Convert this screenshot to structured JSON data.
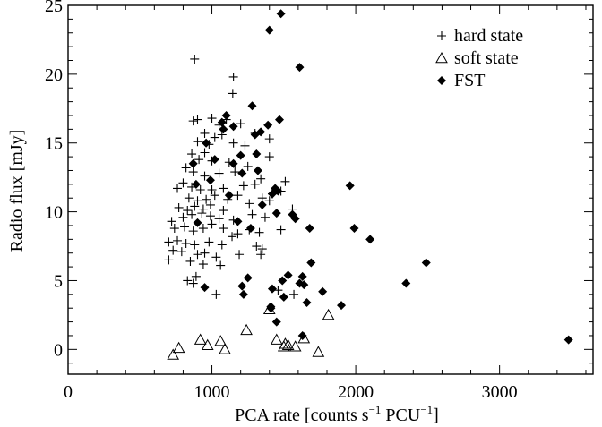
{
  "chart_data": {
    "type": "scatter",
    "title": "",
    "xlabel": "PCA rate [counts s",
    "xlabel_sup1": "−1",
    "xlabel_mid": " PCU",
    "xlabel_sup2": "−1",
    "xlabel_end": "]",
    "ylabel": "Radio flux [mJy]",
    "xlim": [
      0,
      3650
    ],
    "ylim": [
      -1.8,
      25
    ],
    "x_ticks": [
      0,
      1000,
      2000,
      3000
    ],
    "x_tick_labels": [
      "0",
      "1000",
      "2000",
      "3000"
    ],
    "y_ticks": [
      0,
      5,
      10,
      15,
      20,
      25
    ],
    "y_tick_labels": [
      "0",
      "5",
      "10",
      "15",
      "20",
      "25"
    ],
    "legend_position": "top-right",
    "series": [
      {
        "name": "hard state",
        "marker": "plus",
        "points": [
          [
            880,
            21.1
          ],
          [
            1150,
            19.8
          ],
          [
            1145,
            18.6
          ],
          [
            900,
            16.7
          ],
          [
            870,
            16.6
          ],
          [
            1000,
            16.8
          ],
          [
            1100,
            16.7
          ],
          [
            1050,
            16.3
          ],
          [
            1200,
            16.4
          ],
          [
            950,
            15.7
          ],
          [
            1020,
            15.4
          ],
          [
            1070,
            15.6
          ],
          [
            1300,
            15.7
          ],
          [
            1400,
            15.3
          ],
          [
            900,
            15.1
          ],
          [
            980,
            14.9
          ],
          [
            1150,
            15.0
          ],
          [
            1230,
            14.8
          ],
          [
            860,
            14.2
          ],
          [
            910,
            13.8
          ],
          [
            950,
            14.3
          ],
          [
            1000,
            13.7
          ],
          [
            1120,
            13.6
          ],
          [
            1250,
            13.3
          ],
          [
            1400,
            14.0
          ],
          [
            820,
            13.2
          ],
          [
            870,
            12.9
          ],
          [
            950,
            12.6
          ],
          [
            1050,
            12.8
          ],
          [
            1160,
            12.9
          ],
          [
            1340,
            12.4
          ],
          [
            1510,
            12.2
          ],
          [
            800,
            12.1
          ],
          [
            860,
            11.8
          ],
          [
            920,
            11.6
          ],
          [
            1000,
            11.6
          ],
          [
            1080,
            11.7
          ],
          [
            1220,
            11.9
          ],
          [
            1300,
            12.0
          ],
          [
            1420,
            11.3
          ],
          [
            760,
            11.7
          ],
          [
            840,
            11.0
          ],
          [
            900,
            10.8
          ],
          [
            960,
            10.9
          ],
          [
            1020,
            11.2
          ],
          [
            1110,
            10.9
          ],
          [
            1180,
            11.2
          ],
          [
            1350,
            11.0
          ],
          [
            1480,
            11.5
          ],
          [
            770,
            10.3
          ],
          [
            830,
            10.1
          ],
          [
            880,
            10.4
          ],
          [
            940,
            10.2
          ],
          [
            990,
            10.5
          ],
          [
            1080,
            10.1
          ],
          [
            1260,
            10.6
          ],
          [
            1400,
            10.8
          ],
          [
            1560,
            10.2
          ],
          [
            720,
            9.3
          ],
          [
            800,
            9.6
          ],
          [
            860,
            9.8
          ],
          [
            930,
            9.9
          ],
          [
            990,
            9.7
          ],
          [
            1050,
            9.5
          ],
          [
            1150,
            9.4
          ],
          [
            1280,
            9.8
          ],
          [
            1370,
            9.6
          ],
          [
            740,
            8.8
          ],
          [
            810,
            8.9
          ],
          [
            870,
            8.6
          ],
          [
            940,
            8.8
          ],
          [
            1000,
            9.1
          ],
          [
            1080,
            8.8
          ],
          [
            1180,
            8.4
          ],
          [
            1260,
            8.7
          ],
          [
            1330,
            8.5
          ],
          [
            1480,
            8.7
          ],
          [
            700,
            7.8
          ],
          [
            760,
            7.9
          ],
          [
            820,
            7.7
          ],
          [
            880,
            7.6
          ],
          [
            980,
            7.8
          ],
          [
            1070,
            7.6
          ],
          [
            1140,
            8.2
          ],
          [
            1310,
            7.5
          ],
          [
            730,
            7.2
          ],
          [
            790,
            7.1
          ],
          [
            900,
            6.9
          ],
          [
            950,
            7.0
          ],
          [
            1030,
            6.7
          ],
          [
            1190,
            6.9
          ],
          [
            1340,
            6.9
          ],
          [
            700,
            6.5
          ],
          [
            850,
            6.4
          ],
          [
            940,
            6.2
          ],
          [
            1060,
            6.1
          ],
          [
            830,
            5.0
          ],
          [
            890,
            5.3
          ],
          [
            870,
            4.8
          ],
          [
            1030,
            4.0
          ],
          [
            1460,
            4.3
          ],
          [
            1570,
            4.0
          ],
          [
            1350,
            7.3
          ]
        ]
      },
      {
        "name": "soft state",
        "marker": "triangle",
        "points": [
          [
            730,
            -0.4
          ],
          [
            770,
            0.1
          ],
          [
            920,
            0.7
          ],
          [
            970,
            0.3
          ],
          [
            1060,
            0.6
          ],
          [
            1090,
            0.0
          ],
          [
            1240,
            1.4
          ],
          [
            1400,
            2.9
          ],
          [
            1450,
            0.7
          ],
          [
            1510,
            0.4
          ],
          [
            1500,
            0.2
          ],
          [
            1530,
            0.3
          ],
          [
            1580,
            0.2
          ],
          [
            1640,
            0.8
          ],
          [
            1740,
            -0.2
          ],
          [
            1810,
            2.5
          ]
        ]
      },
      {
        "name": "FST",
        "marker": "diamond",
        "points": [
          [
            1480,
            24.4
          ],
          [
            1400,
            23.2
          ],
          [
            1610,
            20.5
          ],
          [
            1280,
            17.7
          ],
          [
            1100,
            17.0
          ],
          [
            1070,
            16.5
          ],
          [
            1390,
            16.3
          ],
          [
            1470,
            16.7
          ],
          [
            1150,
            16.2
          ],
          [
            1080,
            16.0
          ],
          [
            1300,
            15.6
          ],
          [
            1340,
            15.8
          ],
          [
            960,
            15.0
          ],
          [
            1020,
            13.8
          ],
          [
            1200,
            14.1
          ],
          [
            1310,
            14.2
          ],
          [
            870,
            13.5
          ],
          [
            1150,
            13.5
          ],
          [
            990,
            12.3
          ],
          [
            1210,
            12.8
          ],
          [
            890,
            12.0
          ],
          [
            1320,
            13.0
          ],
          [
            1440,
            11.7
          ],
          [
            1460,
            11.5
          ],
          [
            1420,
            11.3
          ],
          [
            1120,
            11.2
          ],
          [
            1350,
            10.5
          ],
          [
            1450,
            9.9
          ],
          [
            1560,
            9.8
          ],
          [
            1960,
            11.9
          ],
          [
            1180,
            9.3
          ],
          [
            1580,
            9.5
          ],
          [
            900,
            9.2
          ],
          [
            1990,
            8.8
          ],
          [
            1270,
            8.8
          ],
          [
            1680,
            8.8
          ],
          [
            2100,
            8.0
          ],
          [
            2490,
            6.3
          ],
          [
            1690,
            6.3
          ],
          [
            1530,
            5.4
          ],
          [
            1630,
            5.3
          ],
          [
            1250,
            5.2
          ],
          [
            1490,
            5.0
          ],
          [
            1610,
            4.8
          ],
          [
            1640,
            4.7
          ],
          [
            2350,
            4.8
          ],
          [
            950,
            4.5
          ],
          [
            1210,
            4.6
          ],
          [
            1420,
            4.4
          ],
          [
            1770,
            4.2
          ],
          [
            1220,
            4.0
          ],
          [
            1500,
            3.8
          ],
          [
            1660,
            3.4
          ],
          [
            1410,
            3.1
          ],
          [
            1900,
            3.2
          ],
          [
            1410,
            3.0
          ],
          [
            1450,
            2.0
          ],
          [
            1630,
            1.0
          ],
          [
            3480,
            0.7
          ]
        ]
      }
    ]
  }
}
